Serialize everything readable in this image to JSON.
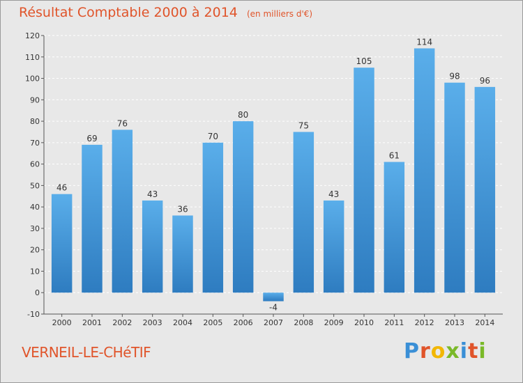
{
  "chart_data": {
    "type": "bar",
    "title": "Résultat Comptable 2000 à 2014",
    "subtitle": "(en milliers d'€)",
    "categories": [
      "2000",
      "2001",
      "2002",
      "2003",
      "2004",
      "2005",
      "2006",
      "2007",
      "2008",
      "2009",
      "2010",
      "2011",
      "2012",
      "2013",
      "2014"
    ],
    "values": [
      46,
      69,
      76,
      43,
      36,
      70,
      80,
      -4,
      75,
      43,
      105,
      61,
      114,
      98,
      96
    ],
    "ylim": [
      -10,
      120
    ],
    "yticks": [
      -10,
      0,
      10,
      20,
      30,
      40,
      50,
      60,
      70,
      80,
      90,
      100,
      110,
      120
    ],
    "grid": true,
    "bar_color": "#3a8fd6"
  },
  "commune": "VERNEIL-LE-CHéTIF",
  "logo": {
    "letters": [
      "P",
      "r",
      "o",
      "x",
      "i",
      "t",
      "i"
    ],
    "colors": [
      "#3a8fd6",
      "#e0542a",
      "#f2b705",
      "#7ab929",
      "#3a8fd6",
      "#e0542a",
      "#7ab929"
    ]
  },
  "colors": {
    "title": "#e0542a",
    "background": "#e8e8e8",
    "grid": "#ffffff"
  }
}
